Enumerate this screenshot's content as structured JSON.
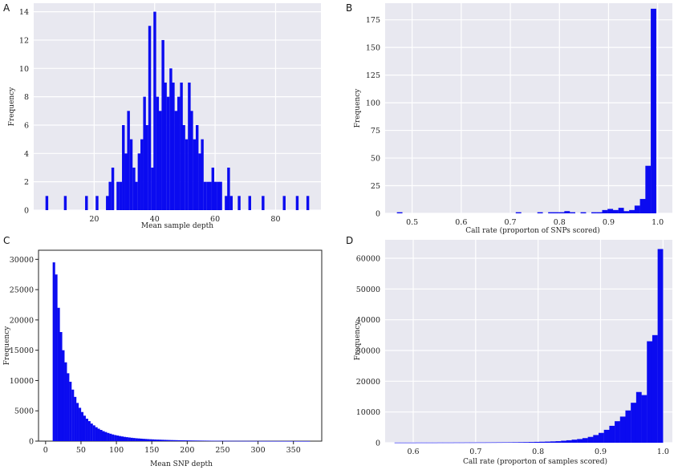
{
  "chart_data": [
    {
      "panel": "A",
      "type": "bar",
      "style": "ggplot",
      "xlabel": "Mean sample depth",
      "ylabel": "Frequency",
      "xlim": [
        0,
        95
      ],
      "ylim": [
        0,
        14.6
      ],
      "xticks": [
        20,
        40,
        60,
        80
      ],
      "yticks": [
        0,
        2,
        4,
        6,
        8,
        10,
        12,
        14
      ],
      "bin_width": 0.87,
      "bin_starts": [
        3.9,
        10.0,
        17.0,
        20.5,
        23.9,
        24.8,
        25.7,
        27.4,
        28.3,
        29.2,
        30.1,
        30.9,
        31.8,
        32.7,
        33.5,
        34.4,
        35.3,
        36.2,
        37.0,
        37.9,
        38.8,
        39.6,
        40.5,
        41.4,
        42.3,
        43.1,
        44.0,
        44.9,
        45.7,
        46.6,
        47.5,
        48.4,
        49.2,
        50.1,
        51.0,
        51.8,
        52.7,
        53.6,
        54.5,
        55.3,
        56.2,
        57.1,
        57.9,
        58.8,
        59.7,
        60.6,
        61.4,
        63.2,
        64.0,
        64.9,
        67.5,
        71.0,
        75.4,
        82.4,
        86.7,
        90.2
      ],
      "counts": [
        1,
        1,
        1,
        1,
        1,
        2,
        3,
        2,
        2,
        6,
        4,
        7,
        5,
        3,
        2,
        4,
        5,
        8,
        6,
        13,
        3,
        14,
        8,
        7,
        12,
        9,
        8,
        10,
        9,
        7,
        8,
        9,
        6,
        5,
        9,
        7,
        5,
        6,
        4,
        5,
        2,
        2,
        2,
        3,
        2,
        2,
        2,
        1,
        3,
        1,
        1,
        1,
        1,
        1,
        1,
        1
      ]
    },
    {
      "panel": "B",
      "type": "bar",
      "style": "ggplot",
      "xlabel": "Call rate (proporton of SNPs scored)",
      "ylabel": "Frequency",
      "xlim": [
        0.445,
        1.03
      ],
      "ylim": [
        0,
        190
      ],
      "xticks": [
        0.5,
        0.6,
        0.7,
        0.8,
        0.9,
        1.0
      ],
      "yticks": [
        0,
        25,
        50,
        75,
        100,
        125,
        150,
        175
      ],
      "xtick_labels": [
        "0.5",
        "0.6",
        "0.7",
        "0.8",
        "0.9",
        "1.0"
      ],
      "bin_width": 0.011,
      "bin_starts": [
        0.469,
        0.48,
        0.491,
        0.502,
        0.513,
        0.524,
        0.535,
        0.546,
        0.557,
        0.568,
        0.579,
        0.59,
        0.601,
        0.612,
        0.623,
        0.634,
        0.645,
        0.656,
        0.667,
        0.678,
        0.689,
        0.7,
        0.711,
        0.722,
        0.733,
        0.744,
        0.755,
        0.766,
        0.777,
        0.788,
        0.799,
        0.81,
        0.821,
        0.832,
        0.843,
        0.854,
        0.865,
        0.876,
        0.887,
        0.898,
        0.909,
        0.92,
        0.931,
        0.942,
        0.953,
        0.964,
        0.975,
        0.986
      ],
      "counts": [
        1,
        0,
        0,
        0,
        0,
        0,
        0,
        0,
        0,
        0,
        0,
        0,
        0,
        0,
        0,
        0,
        0,
        0,
        0,
        0,
        0,
        0,
        1,
        0,
        0,
        0,
        1,
        0,
        1,
        1,
        1,
        2,
        1,
        0,
        1,
        0,
        1,
        1,
        3,
        4,
        3,
        5,
        2,
        3,
        7,
        13,
        43,
        185
      ]
    },
    {
      "panel": "C",
      "type": "bar",
      "style": "classic",
      "xlabel": "Mean SNP depth",
      "ylabel": "Frequency",
      "xlim": [
        -10,
        390
      ],
      "ylim": [
        0,
        31500
      ],
      "xticks": [
        0,
        50,
        100,
        150,
        200,
        250,
        300,
        350
      ],
      "yticks": [
        0,
        5000,
        10000,
        15000,
        20000,
        25000,
        30000
      ],
      "bin_width": 3.33,
      "bin_starts": [
        10.0,
        13.3,
        16.7,
        20.0,
        23.3,
        26.7,
        30.0,
        33.3,
        36.7,
        40.0,
        43.3,
        46.7,
        50.0,
        53.3,
        56.7,
        60.0,
        63.3,
        66.7,
        70.0,
        73.3,
        76.7,
        80.0,
        83.3,
        86.7,
        90.0,
        93.3,
        96.7,
        100.0,
        103.3,
        106.7,
        110.0,
        113.3,
        116.7,
        120.0,
        123.3,
        126.7,
        130.0,
        133.3,
        136.7,
        140.0,
        143.3,
        146.7,
        150.0,
        153.3,
        156.7,
        160.0,
        163.3,
        166.7,
        170.0,
        173.3,
        176.7,
        180.0,
        183.3,
        186.7,
        190.0,
        193.3,
        196.7,
        200.0,
        203.3,
        206.7,
        210.0,
        213.3,
        216.7,
        220.0,
        223.3,
        226.7,
        230.0,
        233.3,
        236.7,
        240.0,
        243.3,
        246.7,
        250.0,
        253.3,
        256.7,
        260.0,
        263.3,
        266.7,
        270.0,
        273.3,
        276.7,
        280.0,
        283.3,
        286.7,
        290.0,
        293.3,
        296.7,
        300.0,
        303.3,
        306.7,
        310.0,
        313.3,
        316.7,
        320.0,
        323.3,
        326.7,
        330.0,
        333.3,
        336.7,
        340.0,
        343.3,
        346.7,
        350.0,
        353.3,
        356.7,
        360.0,
        363.3,
        366.7,
        370.0
      ],
      "counts": [
        29500,
        27500,
        22000,
        18000,
        15000,
        13000,
        11200,
        9800,
        8500,
        7300,
        6300,
        5500,
        4800,
        4200,
        3700,
        3300,
        2900,
        2600,
        2300,
        2050,
        1850,
        1650,
        1500,
        1350,
        1220,
        1100,
        1000,
        920,
        840,
        770,
        700,
        650,
        600,
        550,
        510,
        470,
        440,
        410,
        380,
        355,
        330,
        310,
        290,
        270,
        255,
        240,
        225,
        210,
        198,
        186,
        175,
        165,
        155,
        146,
        138,
        130,
        123,
        116,
        110,
        104,
        98,
        93,
        88,
        83,
        79,
        75,
        71,
        67,
        64,
        61,
        58,
        55,
        52,
        49,
        47,
        45,
        43,
        41,
        39,
        37,
        35,
        33,
        31,
        30,
        28,
        27,
        25,
        24,
        23,
        22,
        21,
        20,
        19,
        18,
        17,
        16,
        15,
        14,
        13,
        12,
        12,
        11,
        10,
        10,
        9,
        9,
        8,
        8,
        7
      ]
    },
    {
      "panel": "D",
      "type": "bar",
      "style": "ggplot",
      "xlabel": "Call rate (proporton of samples scored)",
      "ylabel": "Frequency",
      "xlim": [
        0.555,
        1.015
      ],
      "ylim": [
        0,
        66000
      ],
      "xticks": [
        0.6,
        0.7,
        0.8,
        0.9,
        1.0
      ],
      "yticks": [
        0,
        10000,
        20000,
        30000,
        40000,
        50000,
        60000
      ],
      "xtick_labels": [
        "0.6",
        "0.7",
        "0.8",
        "0.9",
        "1.0"
      ],
      "bin_width": 0.0086,
      "bin_starts": [
        0.57,
        0.5786,
        0.5872,
        0.5958,
        0.6044,
        0.613,
        0.6216,
        0.6302,
        0.6388,
        0.6474,
        0.656,
        0.6646,
        0.6732,
        0.6818,
        0.6904,
        0.699,
        0.7076,
        0.7162,
        0.7248,
        0.7334,
        0.742,
        0.7506,
        0.7592,
        0.7678,
        0.7764,
        0.785,
        0.7936,
        0.8022,
        0.8108,
        0.8194,
        0.828,
        0.8366,
        0.8452,
        0.8538,
        0.8624,
        0.871,
        0.8796,
        0.8882,
        0.8968,
        0.9054,
        0.914,
        0.9226,
        0.9312,
        0.9398,
        0.9484,
        0.957,
        0.9656,
        0.9742,
        0.9828,
        0.9914
      ],
      "counts": [
        50,
        50,
        50,
        50,
        60,
        60,
        60,
        60,
        70,
        70,
        70,
        80,
        80,
        90,
        90,
        100,
        100,
        110,
        120,
        130,
        140,
        150,
        170,
        190,
        210,
        240,
        280,
        320,
        370,
        430,
        500,
        650,
        800,
        1000,
        1200,
        1500,
        1900,
        2500,
        3200,
        4200,
        5500,
        7000,
        8500,
        10500,
        13000,
        16500,
        15500,
        33000,
        35000,
        63000
      ]
    }
  ]
}
